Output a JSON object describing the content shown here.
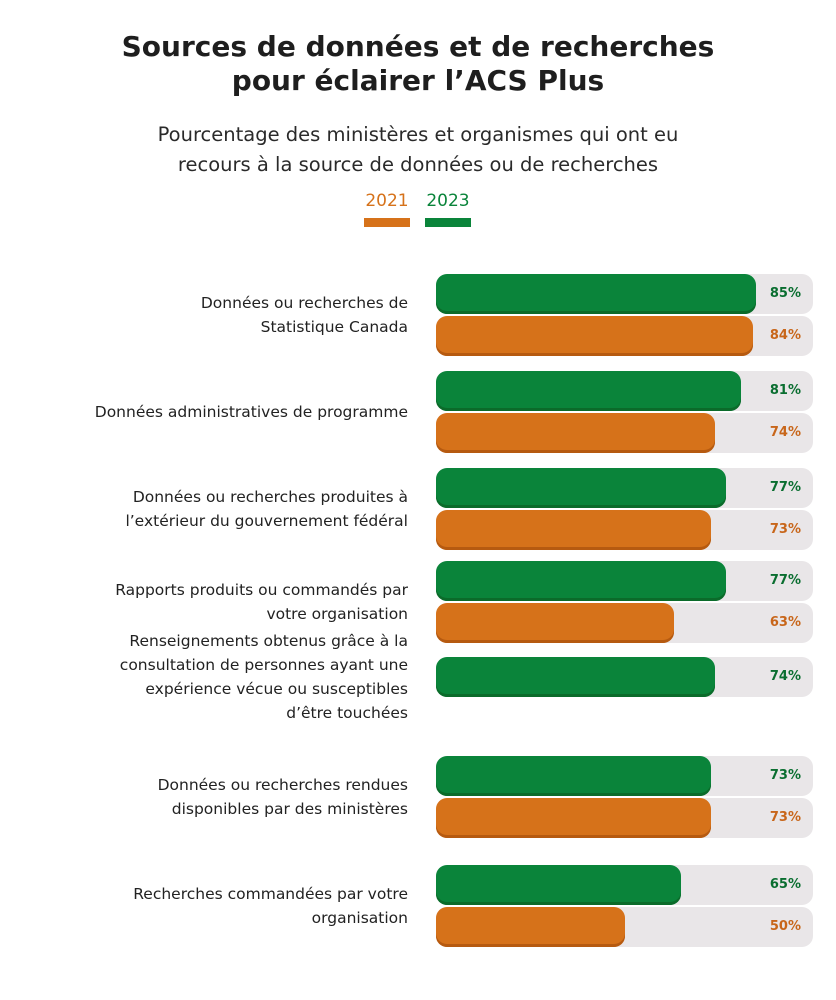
{
  "title_lines": [
    "Sources de données et de recherches",
    "pour éclairer l’ACS Plus"
  ],
  "subtitle_lines": [
    "Pourcentage des ministères et organismes qui ont eu",
    "recours à la source de données ou de recherches"
  ],
  "legend": [
    {
      "label": "2021",
      "color": "#d6721a"
    },
    {
      "label": "2023",
      "color": "#0a843a"
    }
  ],
  "chart_data": {
    "type": "bar",
    "orientation": "horizontal",
    "xlim": [
      0,
      100
    ],
    "value_suffix": "%",
    "colors": {
      "2023": "#0a843a",
      "2021": "#d6721a",
      "track": "#e9e6e8"
    },
    "categories": [
      {
        "lines": [
          "Données ou recherches de",
          "Statistique Canada"
        ],
        "values": {
          "2023": 85,
          "2021": 84
        }
      },
      {
        "lines": [
          "Données administratives de programme"
        ],
        "values": {
          "2023": 81,
          "2021": 74
        }
      },
      {
        "lines": [
          "Données ou recherches produites à",
          "l’extérieur du gouvernement fédéral"
        ],
        "values": {
          "2023": 77,
          "2021": 73
        }
      },
      {
        "lines": [
          "Rapports produits ou commandés par",
          "votre organisation"
        ],
        "values": {
          "2023": 77,
          "2021": 63
        }
      },
      {
        "lines": [
          "Renseignements obtenus grâce à la",
          "consultation de personnes ayant une",
          "expérience vécue ou susceptibles",
          "d’être touchées"
        ],
        "values": {
          "2023": 74
        }
      },
      {
        "lines": [
          "Données ou recherches rendues",
          "disponibles par des ministères"
        ],
        "values": {
          "2023": 73,
          "2021": 73
        }
      },
      {
        "lines": [
          "Recherches commandées par votre",
          "organisation"
        ],
        "values": {
          "2023": 65,
          "2021": 50
        }
      }
    ]
  }
}
